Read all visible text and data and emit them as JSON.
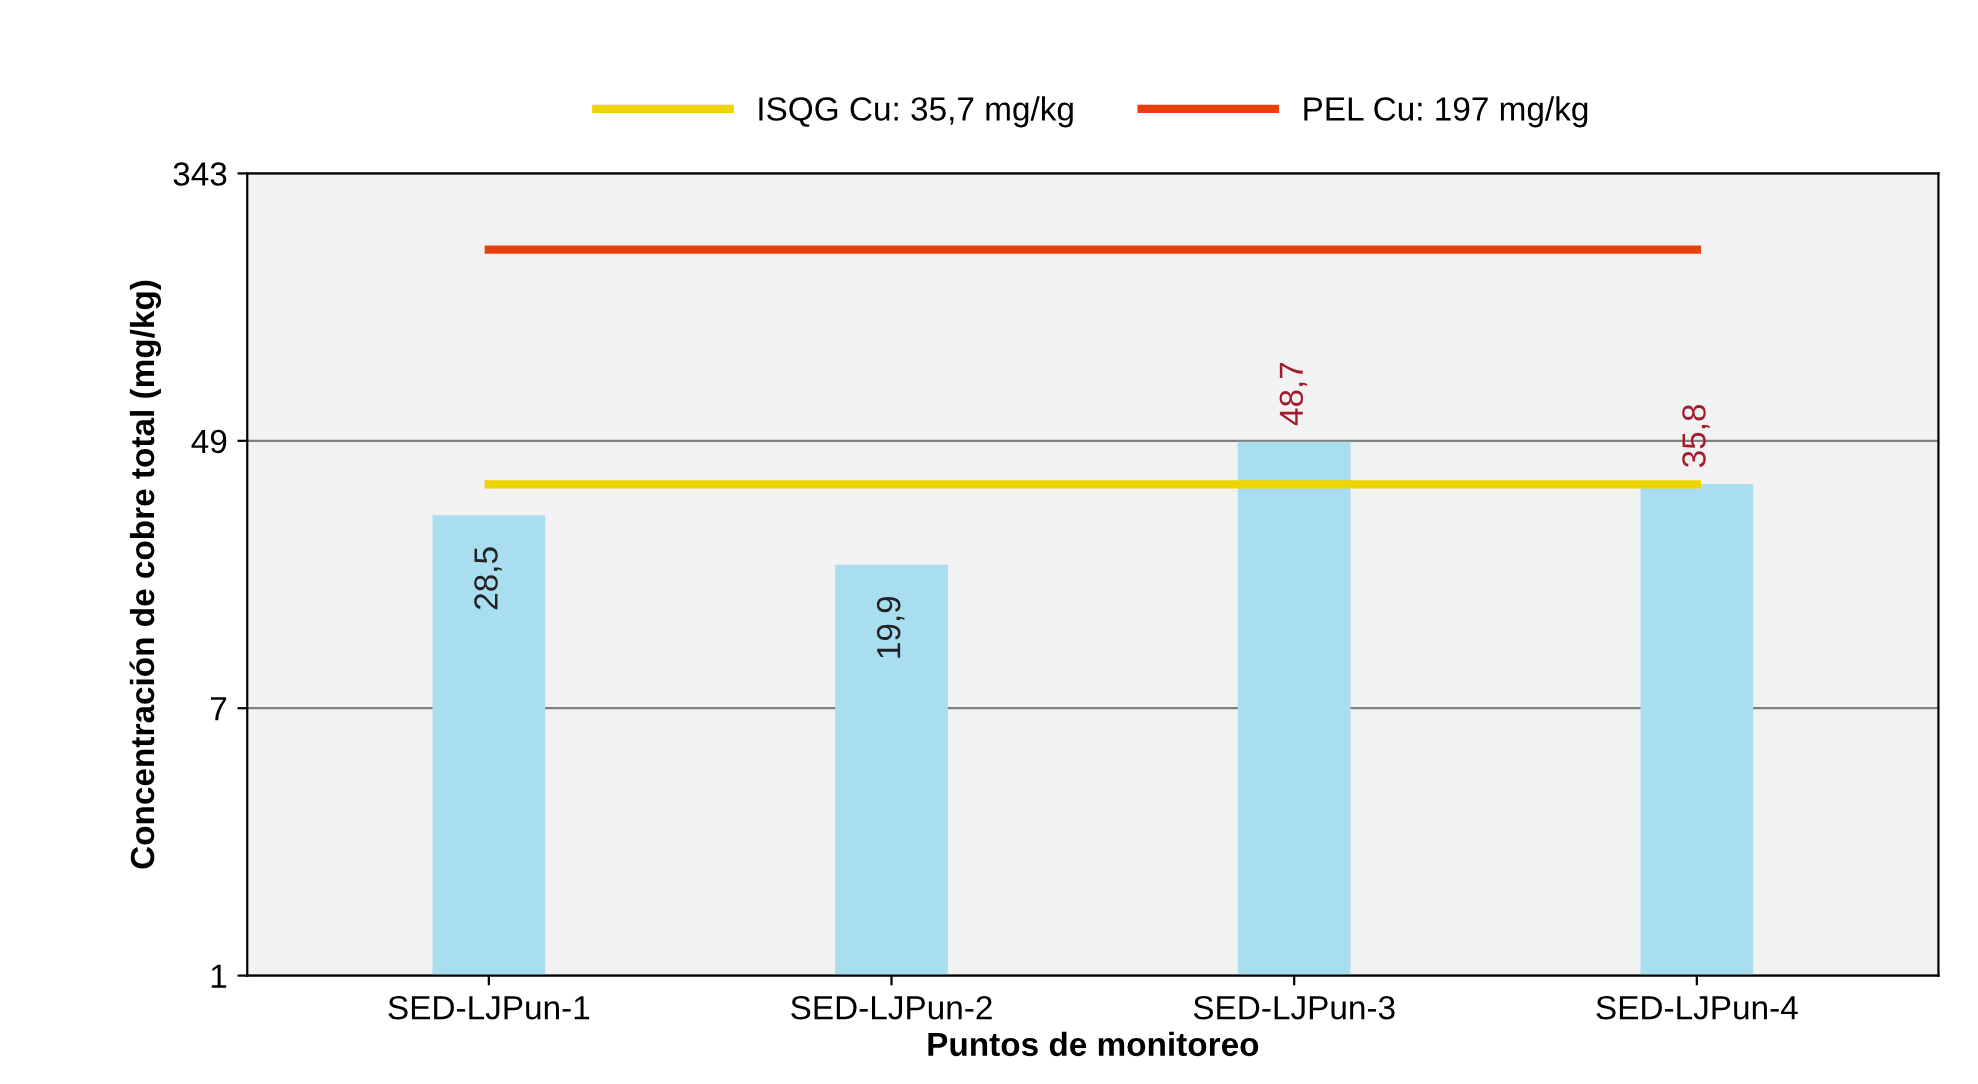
{
  "chart_data": {
    "type": "bar",
    "xlabel": "Puntos de monitoreo",
    "ylabel": "Concentración de cobre total (mg/kg)",
    "categories": [
      "SED-LJPun-1",
      "SED-LJPun-2",
      "SED-LJPun-3",
      "SED-LJPun-4"
    ],
    "series": [
      {
        "color": "#a9def0",
        "values": [
          28.5,
          19.9,
          48.7,
          35.8
        ],
        "value_labels": [
          "28,5",
          "19,9",
          "48,7",
          "35,8"
        ]
      },
      {
        "type": "line",
        "name": "ISQG Cu: 35,7 mg/kg",
        "color": "#f0d400",
        "values": [
          35.7,
          35.7,
          35.7,
          35.7
        ]
      },
      {
        "type": "line",
        "name": "PEL Cu: 197 mg/kg",
        "color": "#e8400c",
        "values": [
          197,
          197,
          197,
          197
        ]
      }
    ],
    "log": true,
    "ylim": [
      1,
      343
    ],
    "yticks": [
      1,
      7,
      49,
      343
    ],
    "grid": "y",
    "legend": "top"
  }
}
